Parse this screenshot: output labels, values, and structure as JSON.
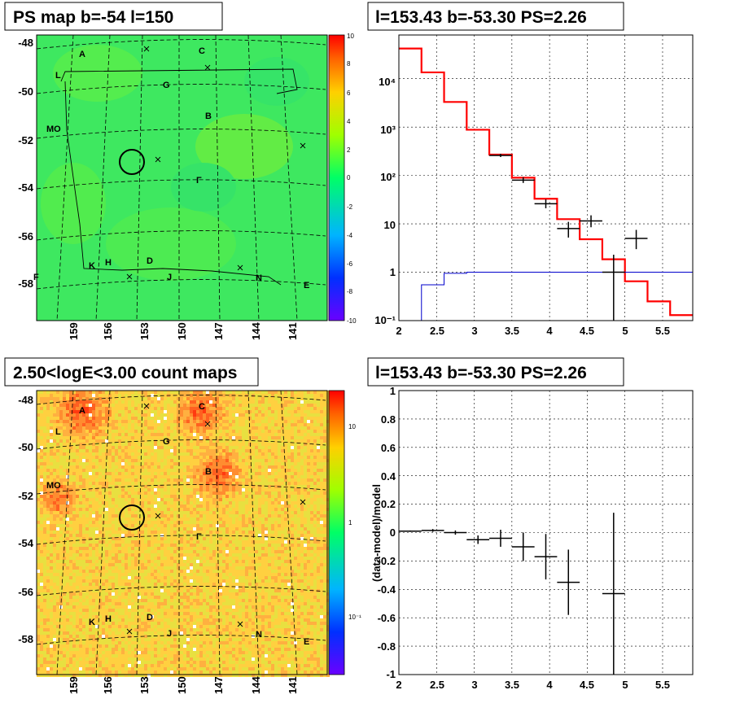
{
  "chart_data": [
    {
      "type": "heatmap",
      "title": "PS map b=-54 l=150",
      "y_ticks": [
        "-48",
        "-50",
        "-52",
        "-54",
        "-56",
        "-58"
      ],
      "x_ticks": [
        "159",
        "156",
        "153",
        "150",
        "147",
        "144",
        "141"
      ],
      "colorbar_ticks": [
        "10",
        "8",
        "6",
        "4",
        "2",
        "0",
        "-2",
        "-4",
        "-6",
        "-8",
        "-10"
      ],
      "zlim": [
        -10,
        10
      ],
      "region_labels": [
        "A",
        "C",
        "L",
        "G",
        "B",
        "MO",
        "Γ",
        "K",
        "H",
        "D",
        "J",
        "N",
        "E",
        "F"
      ]
    },
    {
      "type": "line",
      "title": "l=153.43 b=-53.30 PS=2.26",
      "x_ticks": [
        "2",
        "2.5",
        "3",
        "3.5",
        "4",
        "4.5",
        "5",
        "5.5"
      ],
      "y_ticks": [
        "10⁻¹",
        "1",
        "10",
        "10²",
        "10³",
        "10⁴"
      ],
      "xlim": [
        2,
        5.9
      ],
      "ylim": [
        0.1,
        80000
      ],
      "yscale": "log",
      "grid": true,
      "model_bin_edges": [
        2,
        2.3,
        2.6,
        2.9,
        3.2,
        3.5,
        3.8,
        4.1,
        4.4,
        4.7,
        5,
        5.3,
        5.6,
        5.9
      ],
      "model_values": [
        42000,
        13500,
        3300,
        880,
        270,
        90,
        33,
        12.5,
        4.8,
        1.85,
        0.65,
        0.25,
        0.13
      ],
      "source_values": [
        0.1,
        0.55,
        0.95,
        1.0,
        1.0,
        1.0,
        1.0,
        1.0,
        1.0,
        1.0,
        1.0,
        1.0,
        1.0
      ],
      "data_points": [
        {
          "x": 3.35,
          "y": 260,
          "xerr": 0.15,
          "ylo": 240,
          "yhi": 280
        },
        {
          "x": 3.65,
          "y": 80,
          "xerr": 0.15,
          "ylo": 70,
          "yhi": 92
        },
        {
          "x": 3.95,
          "y": 26,
          "xerr": 0.15,
          "ylo": 21,
          "yhi": 32
        },
        {
          "x": 4.25,
          "y": 8,
          "xerr": 0.15,
          "ylo": 5.2,
          "yhi": 11
        },
        {
          "x": 4.55,
          "y": 11.5,
          "xerr": 0.15,
          "ylo": 8.5,
          "yhi": 15
        },
        {
          "x": 4.85,
          "y": 1.0,
          "xerr": 0.15,
          "ylo": 0.1,
          "yhi": 2.3
        },
        {
          "x": 5.15,
          "y": 5.0,
          "xerr": 0.15,
          "ylo": 3.0,
          "yhi": 7.5
        }
      ]
    },
    {
      "type": "heatmap",
      "title": "2.50<logE<3.00 count maps",
      "y_ticks": [
        "-48",
        "-50",
        "-52",
        "-54",
        "-56",
        "-58"
      ],
      "x_ticks": [
        "159",
        "156",
        "153",
        "150",
        "147",
        "144",
        "141"
      ],
      "colorbar_ticks": [
        "10",
        "1",
        "10⁻¹"
      ],
      "zscale": "log"
    },
    {
      "type": "scatter",
      "title": "l=153.43 b=-53.30 PS=2.26",
      "ylabel": "(data-model)/model",
      "x_ticks": [
        "2",
        "2.5",
        "3",
        "3.5",
        "4",
        "4.5",
        "5",
        "5.5"
      ],
      "y_ticks": [
        "1",
        "0.8",
        "0.6",
        "0.4",
        "0.2",
        "0",
        "-0.2",
        "-0.4",
        "-0.6",
        "-0.8",
        "-1"
      ],
      "xlim": [
        2,
        5.9
      ],
      "ylim": [
        -1,
        1
      ],
      "grid": true,
      "data_points": [
        {
          "x": 2.15,
          "y": 0.01,
          "xerr": 0.15,
          "yerr": 0.005
        },
        {
          "x": 2.45,
          "y": 0.015,
          "xerr": 0.15,
          "yerr": 0.01
        },
        {
          "x": 2.75,
          "y": 0.0,
          "xerr": 0.15,
          "yerr": 0.015
        },
        {
          "x": 3.05,
          "y": -0.05,
          "xerr": 0.15,
          "yerr": 0.03
        },
        {
          "x": 3.35,
          "y": -0.04,
          "xerr": 0.15,
          "yerr": 0.06
        },
        {
          "x": 3.65,
          "y": -0.1,
          "xerr": 0.15,
          "yerr": 0.1
        },
        {
          "x": 3.95,
          "y": -0.17,
          "xerr": 0.15,
          "yerr": 0.16
        },
        {
          "x": 4.25,
          "y": -0.35,
          "xerr": 0.15,
          "yerr": 0.23
        },
        {
          "x": 4.85,
          "y": -0.43,
          "xerr": 0.15,
          "yerr": 0.57
        }
      ]
    }
  ]
}
